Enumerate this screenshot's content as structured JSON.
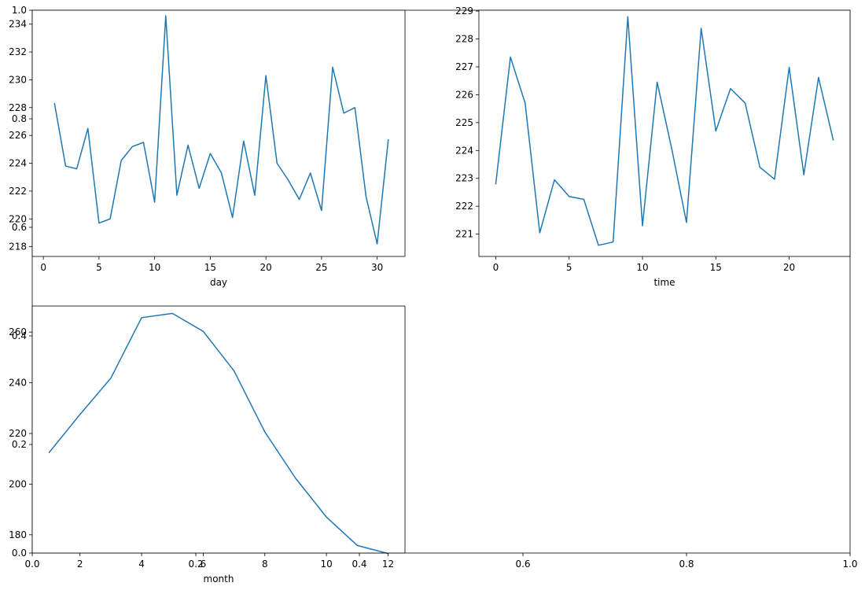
{
  "colors": {
    "line": "#1f77b4",
    "axes": "#000000",
    "background": "#ffffff"
  },
  "background_axes": {
    "xticks": [
      "0.0",
      "0.2",
      "0.4",
      "0.6",
      "0.8",
      "1.0"
    ],
    "yticks": [
      "0.0",
      "0.2",
      "0.4",
      "0.6",
      "0.8",
      "1.0"
    ]
  },
  "chart_data": [
    {
      "type": "line",
      "xlabel": "day",
      "ylabel": "",
      "xlim": [
        -1,
        32.5
      ],
      "ylim": [
        217.3,
        235.0
      ],
      "xticks": [
        0,
        5,
        10,
        15,
        20,
        25,
        30
      ],
      "yticks": [
        218,
        220,
        222,
        224,
        226,
        228,
        230,
        232,
        234
      ],
      "x": [
        1,
        2,
        3,
        4,
        5,
        6,
        7,
        8,
        9,
        10,
        11,
        12,
        13,
        14,
        15,
        16,
        17,
        18,
        19,
        20,
        21,
        22,
        23,
        24,
        25,
        26,
        27,
        28,
        29,
        30,
        31
      ],
      "values": [
        228.3,
        223.8,
        223.6,
        226.5,
        219.7,
        220.0,
        224.2,
        225.2,
        225.5,
        221.2,
        234.6,
        221.7,
        225.3,
        222.2,
        224.7,
        223.3,
        220.1,
        225.6,
        221.7,
        230.3,
        224.0,
        222.8,
        221.4,
        223.3,
        220.6,
        230.9,
        227.6,
        228.0,
        221.6,
        218.2,
        225.7
      ]
    },
    {
      "type": "line",
      "xlabel": "time",
      "ylabel": "",
      "xlim": [
        -1.15,
        24.15
      ],
      "ylim": [
        220.2,
        229.03
      ],
      "xticks": [
        0,
        5,
        10,
        15,
        20
      ],
      "yticks": [
        221,
        222,
        223,
        224,
        225,
        226,
        227,
        228,
        229
      ],
      "x": [
        0,
        1,
        2,
        3,
        4,
        5,
        6,
        7,
        8,
        9,
        10,
        11,
        12,
        13,
        14,
        15,
        16,
        17,
        18,
        19,
        20,
        21,
        22,
        23
      ],
      "values": [
        222.8,
        227.35,
        225.7,
        221.05,
        222.95,
        222.35,
        222.25,
        220.6,
        220.72,
        228.8,
        221.3,
        226.45,
        224.05,
        221.42,
        228.38,
        224.7,
        226.22,
        225.7,
        223.4,
        222.97,
        226.98,
        223.13,
        226.62,
        224.38
      ]
    },
    {
      "type": "line",
      "xlabel": "month",
      "ylabel": "",
      "xlim": [
        0.45,
        12.55
      ],
      "ylim": [
        172.8,
        270.3
      ],
      "xticks": [
        2,
        4,
        6,
        8,
        10,
        12
      ],
      "yticks": [
        180,
        200,
        220,
        240,
        260
      ],
      "x": [
        1,
        2,
        3,
        4,
        5,
        6,
        7,
        8,
        9,
        10,
        11,
        12
      ],
      "values": [
        212.5,
        227.5,
        241.8,
        265.7,
        267.4,
        260.3,
        244.7,
        220.6,
        202.3,
        187.0,
        175.8,
        172.6
      ]
    }
  ]
}
